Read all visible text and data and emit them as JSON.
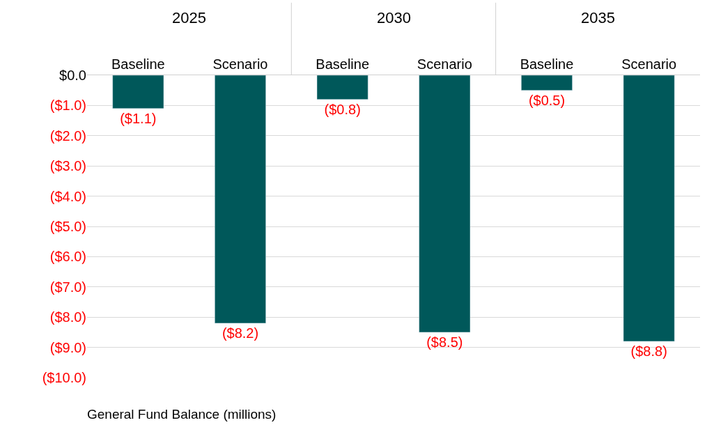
{
  "chart_data": {
    "type": "bar",
    "title": "General Fund Balance (millions)",
    "categories": [
      "Baseline",
      "Scenario",
      "Baseline",
      "Scenario",
      "Baseline",
      "Scenario"
    ],
    "values": [
      -1.1,
      -8.2,
      -0.8,
      -8.5,
      -0.5,
      -8.8
    ],
    "value_labels": [
      "($1.1)",
      "($8.2)",
      "($0.8)",
      "($8.5)",
      "($0.5)",
      "($8.8)"
    ],
    "color": "#00585a",
    "ylim": [
      -10,
      0
    ],
    "yticks": [
      {
        "value": 0,
        "label": "$0.0"
      },
      {
        "value": -1,
        "label": "($1.0)"
      },
      {
        "value": -2,
        "label": "($2.0)"
      },
      {
        "value": -3,
        "label": "($3.0)"
      },
      {
        "value": -4,
        "label": "($4.0)"
      },
      {
        "value": -5,
        "label": "($5.0)"
      },
      {
        "value": -6,
        "label": "($6.0)"
      },
      {
        "value": -7,
        "label": "($7.0)"
      },
      {
        "value": -8,
        "label": "($8.0)"
      },
      {
        "value": -9,
        "label": "($9.0)"
      },
      {
        "value": -10,
        "label": "($10.0)"
      }
    ],
    "grid": "y",
    "annotations": [
      "2025",
      "2030",
      "2035"
    ]
  }
}
